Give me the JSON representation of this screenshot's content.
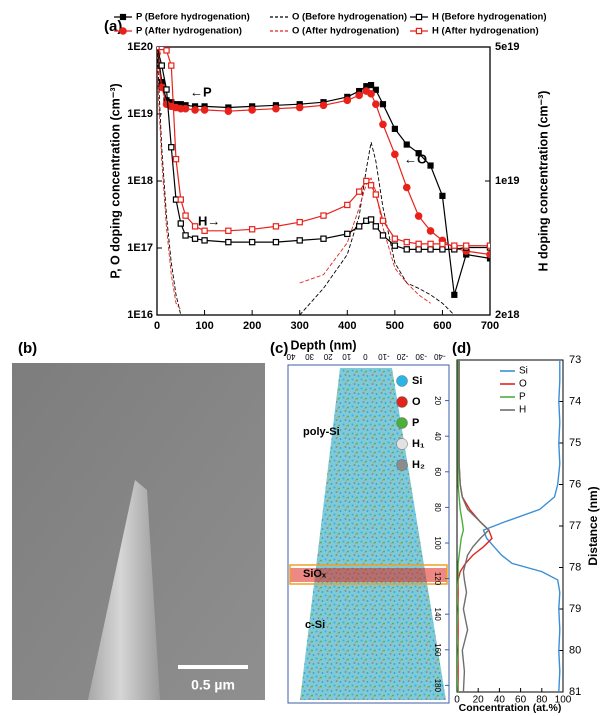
{
  "chart_data": [
    {
      "type": "line",
      "panel_label": "(a)",
      "xlabel": "Depth (nm)",
      "ylabel": "P, O doping concentration (cm⁻³)",
      "y2label": "H doping concentration (cm⁻³)",
      "x": [
        0,
        10,
        20,
        30,
        40,
        50,
        60,
        80,
        100,
        150,
        200,
        250,
        300,
        350,
        400,
        425,
        440,
        450,
        460,
        475,
        500,
        525,
        550,
        575,
        600,
        625,
        650,
        700
      ],
      "xlim": [
        0,
        700
      ],
      "xticks": [
        0,
        100,
        200,
        300,
        400,
        500,
        600,
        700
      ],
      "ylim": [
        1e+16,
        1e+20
      ],
      "log_y": true,
      "yticks": [
        {
          "value": 1e+20,
          "label": "1E20"
        },
        {
          "value": 1e+19,
          "label": "1E19"
        },
        {
          "value": 1e+18,
          "label": "1E18"
        },
        {
          "value": 1e+17,
          "label": "1E17"
        },
        {
          "value": 1e+16,
          "label": "1E16"
        }
      ],
      "y2lim": [
        2e+18,
        5e+19
      ],
      "log_y2": true,
      "y2ticks": [
        {
          "value": 5e+19,
          "label": "5e19"
        },
        {
          "value": 1e+19,
          "label": "1e19"
        },
        {
          "value": 2e+18,
          "label": "2e18"
        }
      ],
      "annotations": [
        "←P",
        "←O",
        "H→"
      ],
      "series": [
        {
          "name": "P (Before hydrogenation)",
          "color": "#000000",
          "marker": "square",
          "filled": true,
          "dashed": false,
          "values": [
            1e+20,
            3e+19,
            1.6e+19,
            1.5e+19,
            1.4e+19,
            1.4e+19,
            1.35e+19,
            1.3e+19,
            1.3e+19,
            1.25e+19,
            1.3e+19,
            1.35e+19,
            1.4e+19,
            1.5e+19,
            1.8e+19,
            2.2e+19,
            2.6e+19,
            2.7e+19,
            2.3e+19,
            1.4e+19,
            6e+18,
            3.5e+18,
            2.6e+18,
            1.7e+18,
            6e+17,
            2e+16,
            8e+16,
            7e+16
          ]
        },
        {
          "name": "P (After hydrogenation)",
          "color": "#e8221b",
          "marker": "circle",
          "filled": true,
          "dashed": false,
          "values": [
            8e+19,
            2.5e+19,
            1.4e+19,
            1.3e+19,
            1.25e+19,
            1.2e+19,
            1.2e+19,
            1.15e+19,
            1.15e+19,
            1.1e+19,
            1.15e+19,
            1.2e+19,
            1.25e+19,
            1.35e+19,
            1.6e+19,
            1.9e+19,
            2.2e+19,
            2e+19,
            1.4e+19,
            7e+18,
            2.5e+18,
            8e+17,
            3e+17,
            1.8e+17,
            1.3e+17,
            1e+17,
            9e+16,
            8e+16
          ]
        },
        {
          "name": "O (Before hydrogenation)",
          "color": "#000000",
          "marker": "none",
          "filled": false,
          "dashed": true,
          "values": [
            1e+20,
            3e+18,
            3e+17,
            6e+16,
            2e+16,
            1e+16,
            null,
            null,
            null,
            null,
            null,
            null,
            1e+16,
            2.5e+16,
            8e+16,
            3e+17,
            1.5e+18,
            3.8e+18,
            2e+18,
            4e+17,
            6e+16,
            3e+16,
            2.5e+16,
            2e+16,
            1.5e+16,
            1e+16,
            null,
            null
          ]
        },
        {
          "name": "O (After hydrogenation)",
          "color": "#e8221b",
          "marker": "none",
          "filled": false,
          "dashed": true,
          "values": [
            5e+19,
            2e+18,
            2e+17,
            4e+16,
            1.5e+16,
            1.2e+16,
            null,
            null,
            null,
            null,
            null,
            null,
            3e+16,
            4e+16,
            1.2e+17,
            4e+17,
            9e+17,
            1.1e+18,
            7e+17,
            2e+17,
            5e+16,
            3e+16,
            2e+16,
            1.5e+16,
            null,
            null,
            null,
            null
          ]
        },
        {
          "name": "H (Before hydrogenation)",
          "color": "#000000",
          "marker": "square",
          "filled": false,
          "dashed": false,
          "axis": "y2",
          "values": [
            5e+19,
            4e+19,
            3e+19,
            1.5e+19,
            8e+18,
            6e+18,
            5.2e+18,
            5e+18,
            4.9e+18,
            4.8e+18,
            4.8e+18,
            4.8e+18,
            4.9e+18,
            5e+18,
            5.3e+18,
            5.8e+18,
            6.2e+18,
            6.3e+18,
            5.8e+18,
            5.2e+18,
            4.6e+18,
            4.4e+18,
            4.4e+18,
            4.4e+18,
            4.4e+18,
            4.4e+18,
            4.5e+18,
            4.5e+18
          ]
        },
        {
          "name": "H (After hydrogenation)",
          "color": "#e8221b",
          "marker": "square",
          "filled": false,
          "dashed": false,
          "axis": "y2",
          "values": [
            5e+19,
            5e+19,
            4.8e+19,
            4e+19,
            1.3e+19,
            8e+18,
            6.6e+18,
            5.8e+18,
            5.5e+18,
            5.5e+18,
            5.6e+18,
            5.8e+18,
            6.1e+18,
            6.6e+18,
            7.5e+18,
            8.8e+18,
            1e+19,
            9.5e+18,
            8.5e+18,
            6.2e+18,
            5e+18,
            4.8e+18,
            4.7e+18,
            4.7e+18,
            4.7e+18,
            4.6e+18,
            4.6e+18,
            4.6e+18
          ]
        }
      ]
    },
    {
      "type": "line",
      "orientation": "vertical",
      "panel_label": "(d)",
      "xlabel": "Distance (nm)",
      "ylabel": "Concentration (at.%)",
      "x": [
        73,
        73.5,
        74,
        74.5,
        75,
        75.5,
        76,
        76.3,
        76.6,
        76.9,
        77.1,
        77.3,
        77.5,
        77.7,
        77.9,
        78.1,
        78.3,
        78.6,
        79,
        79.5,
        80,
        80.5,
        81
      ],
      "xlim": [
        73,
        81
      ],
      "xticks": [
        73,
        74,
        75,
        76,
        77,
        78,
        79,
        80,
        81
      ],
      "ylim": [
        0,
        100
      ],
      "yticks": [
        0,
        20,
        40,
        60,
        80,
        100
      ],
      "series": [
        {
          "name": "Si",
          "color": "#3b8fd6",
          "values": [
            97,
            97,
            96,
            97,
            96,
            97,
            95,
            92,
            78,
            45,
            25,
            28,
            35,
            42,
            52,
            80,
            95,
            97,
            96,
            97,
            96,
            97,
            96
          ]
        },
        {
          "name": "O",
          "color": "#e0261c",
          "values": [
            2,
            2,
            2,
            2,
            2,
            2,
            3,
            5,
            12,
            22,
            30,
            33,
            25,
            15,
            8,
            3,
            1,
            1,
            1,
            1,
            1,
            1,
            1
          ]
        },
        {
          "name": "P",
          "color": "#4caf3a",
          "values": [
            1,
            1,
            1,
            1,
            1,
            1,
            1,
            2,
            3,
            5,
            6,
            4,
            3,
            2,
            1,
            1,
            1,
            0,
            1,
            0,
            1,
            0,
            1
          ]
        },
        {
          "name": "H",
          "color": "#6e6e6e",
          "values": [
            2,
            2,
            2,
            2,
            2,
            2,
            3,
            5,
            10,
            22,
            30,
            22,
            15,
            10,
            8,
            6,
            7,
            9,
            6,
            10,
            5,
            7,
            6
          ]
        }
      ]
    }
  ],
  "sem_image": {
    "panel_label": "(b)",
    "scale_bar": "0.5 µm"
  },
  "reconstruction": {
    "panel_label": "(c)",
    "top_ticks": [
      40,
      30,
      20,
      10,
      0,
      -10,
      -20,
      -30,
      -40
    ],
    "side_ticks": [
      20,
      40,
      60,
      80,
      100,
      120,
      140,
      160,
      180
    ],
    "regions": [
      "poly-Si",
      "SiOₓ",
      "c-Si"
    ],
    "legend": [
      {
        "name": "Si",
        "color": "#2bb5e6"
      },
      {
        "name": "O",
        "color": "#e0261c"
      },
      {
        "name": "P",
        "color": "#4caf3a"
      },
      {
        "name": "H₁",
        "color": "#e2e2e2"
      },
      {
        "name": "H₂",
        "color": "#8c8c8c"
      }
    ]
  }
}
